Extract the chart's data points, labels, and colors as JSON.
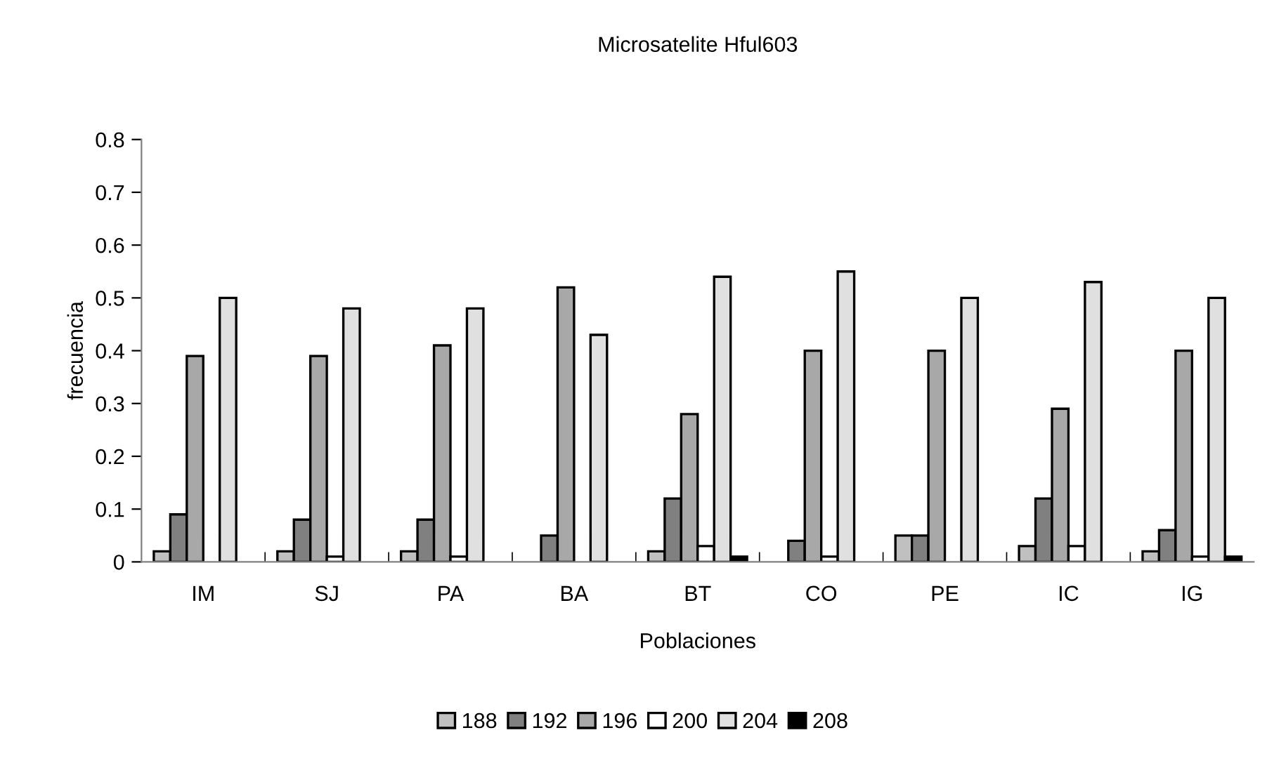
{
  "chart_data": {
    "type": "bar",
    "title": "Microsatelite Hful603",
    "xlabel": "Poblaciones",
    "ylabel": "frecuencia",
    "categories": [
      "IM",
      "SJ",
      "PA",
      "BA",
      "BT",
      "CO",
      "PE",
      "IC",
      "IG"
    ],
    "series": [
      {
        "name": "188",
        "color": "#c0c0c0",
        "values": [
          0.02,
          0.02,
          0.02,
          0,
          0.02,
          0,
          0.05,
          0.03,
          0.02
        ]
      },
      {
        "name": "192",
        "color": "#808080",
        "values": [
          0.09,
          0.08,
          0.08,
          0.05,
          0.12,
          0.04,
          0.05,
          0.12,
          0.06
        ]
      },
      {
        "name": "196",
        "color": "#a8a8a8",
        "values": [
          0.39,
          0.39,
          0.41,
          0.52,
          0.28,
          0.4,
          0.4,
          0.29,
          0.4
        ]
      },
      {
        "name": "200",
        "color": "#ffffff",
        "values": [
          0,
          0.01,
          0.01,
          0,
          0.03,
          0.01,
          0,
          0.03,
          0.01
        ]
      },
      {
        "name": "204",
        "color": "#e0e0e0",
        "values": [
          0.5,
          0.48,
          0.48,
          0.43,
          0.54,
          0.55,
          0.5,
          0.53,
          0.5
        ]
      },
      {
        "name": "208",
        "color": "#000000",
        "values": [
          0,
          0,
          0,
          0,
          0.01,
          0,
          0,
          0,
          0.01
        ]
      }
    ],
    "ylim": [
      0,
      0.8
    ],
    "yticks": [
      0,
      0.1,
      0.2,
      0.3,
      0.4,
      0.5,
      0.6,
      0.7,
      0.8
    ],
    "grid": false,
    "legend": "bottom"
  }
}
